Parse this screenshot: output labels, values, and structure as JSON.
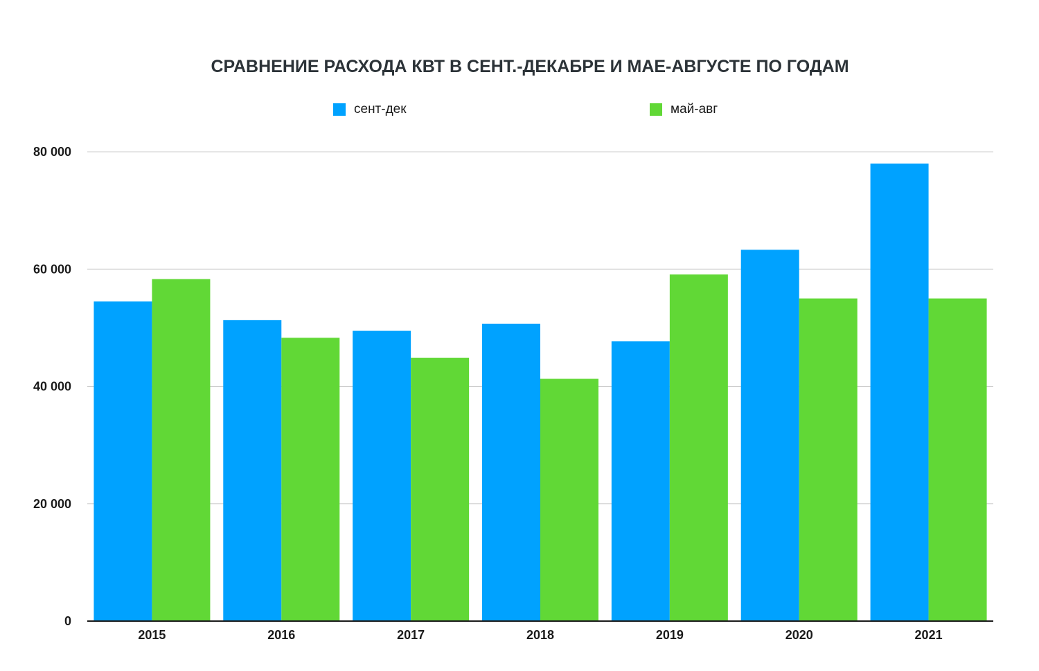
{
  "chart_data": {
    "type": "bar",
    "title": "СРАВНЕНИЕ РАСХОДА КВТ В СЕНТ.-ДЕКАБРЕ И МАЕ-АВГУСТЕ ПО ГОДАМ",
    "categories": [
      "2015",
      "2016",
      "2017",
      "2018",
      "2019",
      "2020",
      "2021"
    ],
    "series": [
      {
        "name": "сент-дек",
        "color": "#00a2ff",
        "values": [
          54500,
          51300,
          49500,
          50700,
          47700,
          63300,
          78000
        ]
      },
      {
        "name": "май-авг",
        "color": "#61d836",
        "values": [
          58300,
          48300,
          44900,
          41300,
          59100,
          55000,
          55000
        ]
      }
    ],
    "ylim": [
      0,
      80000
    ],
    "yticks": [
      0,
      20000,
      40000,
      60000,
      80000
    ],
    "ytick_labels": [
      "0",
      "20 000",
      "40 000",
      "60 000",
      "80 000"
    ],
    "xlabel": "",
    "ylabel": "",
    "grid": true,
    "legend_position": "top"
  }
}
